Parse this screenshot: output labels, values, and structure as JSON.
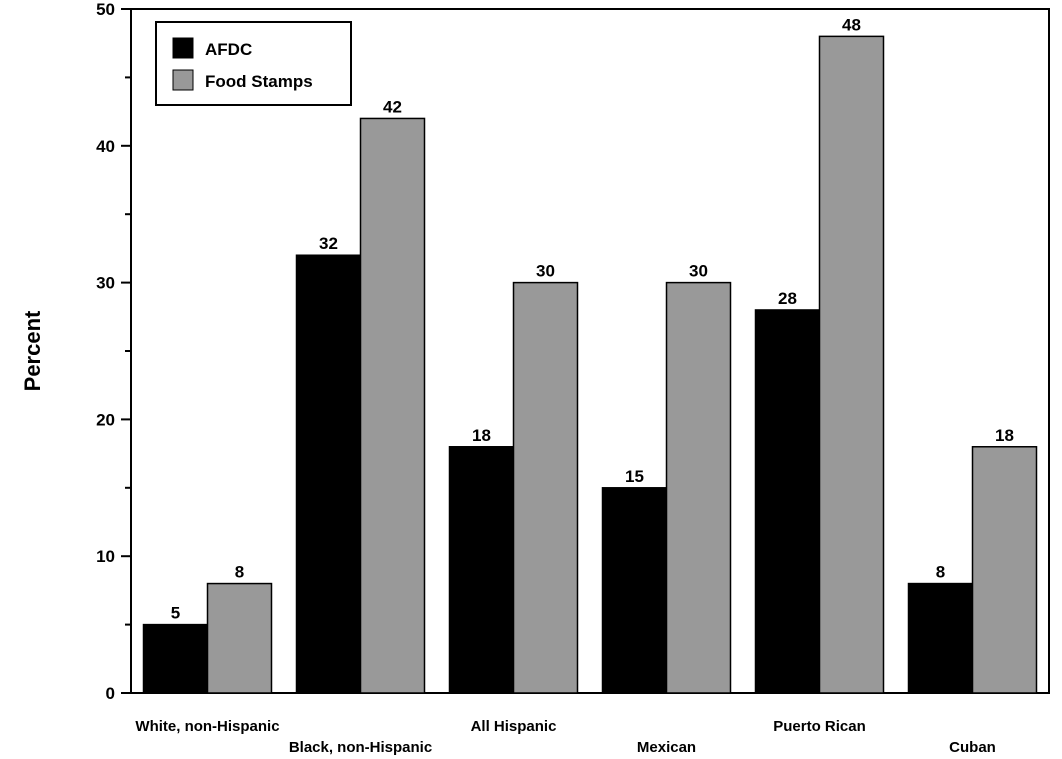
{
  "chart_data": {
    "type": "bar",
    "categories": [
      "White, non-Hispanic",
      "Black, non-Hispanic",
      "All Hispanic",
      "Mexican",
      "Puerto Rican",
      "Cuban"
    ],
    "series": [
      {
        "name": "AFDC",
        "values": [
          5,
          32,
          18,
          15,
          28,
          8
        ],
        "color": "#000000"
      },
      {
        "name": "Food Stamps",
        "values": [
          8,
          42,
          30,
          30,
          48,
          18
        ],
        "color": "#999999"
      }
    ],
    "ylabel": "Percent",
    "xlabel": "",
    "ylim": [
      0,
      50
    ],
    "yticks": [
      0,
      10,
      20,
      30,
      40,
      50
    ],
    "grid": false,
    "legend_position": "top-left"
  }
}
